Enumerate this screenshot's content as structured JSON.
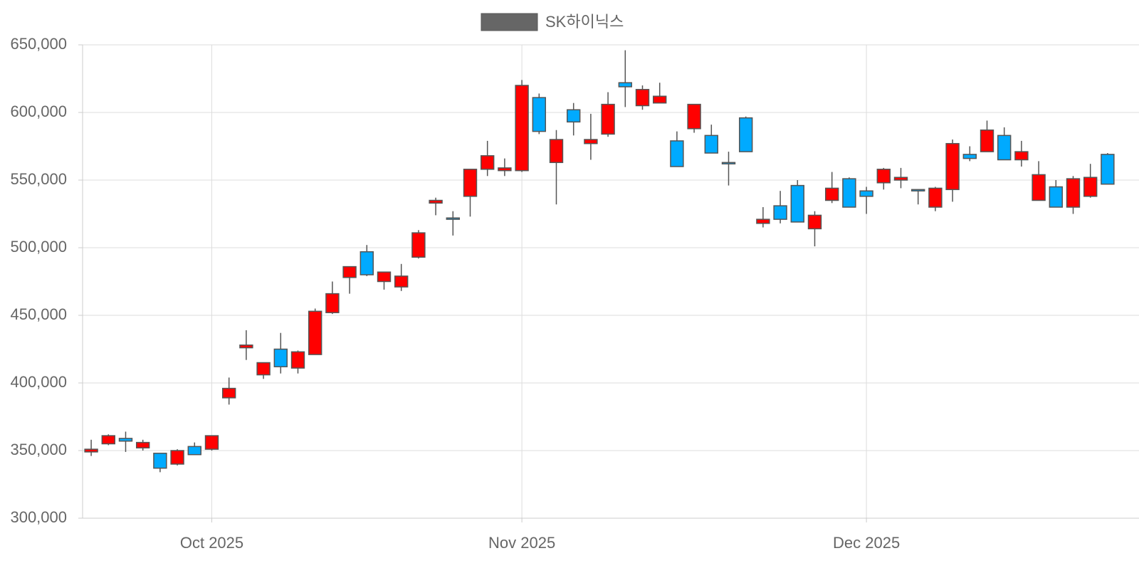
{
  "chart_data": {
    "type": "candlestick",
    "categories": [
      null,
      null,
      null,
      null,
      null,
      null,
      null,
      "Oct 2025",
      null,
      null,
      null,
      null,
      null,
      null,
      null,
      null,
      null,
      null,
      null,
      null,
      null,
      null,
      null,
      null,
      null,
      "Nov 2025",
      null,
      null,
      null,
      null,
      null,
      null,
      null,
      null,
      null,
      null,
      null,
      null,
      null,
      null,
      null,
      null,
      null,
      null,
      null,
      "Dec 2025",
      null,
      null,
      null,
      null,
      null,
      null,
      null,
      null,
      null,
      null,
      null,
      null,
      null,
      null
    ],
    "series": [
      {
        "name": "SK하이닉스",
        "color": "#666666",
        "up_color": "#ff0000",
        "down_color": "#00aaff",
        "open": [
          349000,
          355000,
          359000,
          352000,
          348000,
          340000,
          353000,
          351000,
          389000,
          426000,
          406000,
          425000,
          411000,
          421000,
          452000,
          478000,
          497000,
          475000,
          471000,
          493000,
          533000,
          522000,
          538000,
          558000,
          557000,
          557000,
          611000,
          563000,
          602000,
          577000,
          584000,
          622000,
          605000,
          607000,
          579000,
          588000,
          583000,
          563000,
          596000,
          518000,
          531000,
          546000,
          514000,
          535000,
          551000,
          542000,
          548000,
          550000,
          543000,
          530000,
          543000,
          569000,
          571000,
          583000,
          565000,
          535000,
          545000,
          530000,
          538000,
          569000
        ],
        "high": [
          358000,
          362000,
          364000,
          358000,
          348000,
          351000,
          356000,
          361000,
          404000,
          439000,
          415000,
          437000,
          424000,
          455000,
          475000,
          486000,
          502000,
          482000,
          488000,
          513000,
          537000,
          527000,
          558000,
          579000,
          566000,
          624000,
          614000,
          587000,
          607000,
          599000,
          615000,
          646000,
          620000,
          622000,
          586000,
          606000,
          591000,
          571000,
          597000,
          530000,
          542000,
          550000,
          527000,
          556000,
          552000,
          545000,
          559000,
          559000,
          543000,
          545000,
          580000,
          575000,
          594000,
          589000,
          579000,
          564000,
          550000,
          553000,
          562000,
          570000
        ],
        "low": [
          346000,
          354000,
          349000,
          350000,
          334000,
          339000,
          347000,
          350000,
          384000,
          417000,
          403000,
          407000,
          407000,
          421000,
          451000,
          466000,
          479000,
          469000,
          468000,
          492000,
          524000,
          509000,
          523000,
          553000,
          553000,
          556000,
          584000,
          532000,
          583000,
          565000,
          582000,
          604000,
          602000,
          607000,
          560000,
          585000,
          570000,
          546000,
          571000,
          515000,
          518000,
          519000,
          501000,
          533000,
          530000,
          525000,
          543000,
          544000,
          532000,
          527000,
          534000,
          564000,
          571000,
          565000,
          560000,
          535000,
          530000,
          525000,
          537000,
          547000
        ],
        "close": [
          351000,
          361000,
          357000,
          356000,
          337000,
          350000,
          347000,
          361000,
          396000,
          428000,
          415000,
          412000,
          423000,
          453000,
          466000,
          486000,
          480000,
          482000,
          479000,
          511000,
          535000,
          521000,
          558000,
          568000,
          559000,
          620000,
          586000,
          580000,
          593000,
          580000,
          606000,
          619000,
          617000,
          612000,
          560000,
          606000,
          570000,
          562000,
          571000,
          521000,
          521000,
          519000,
          524000,
          544000,
          530000,
          538000,
          558000,
          552000,
          542000,
          544000,
          577000,
          566000,
          587000,
          565000,
          571000,
          554000,
          530000,
          551000,
          552000,
          547000
        ]
      }
    ],
    "ylim": [
      300000,
      650000
    ],
    "yticks": [
      {
        "value": 300000,
        "label": "300,000"
      },
      {
        "value": 350000,
        "label": "350,000"
      },
      {
        "value": 400000,
        "label": "400,000"
      },
      {
        "value": 450000,
        "label": "450,000"
      },
      {
        "value": 500000,
        "label": "500,000"
      },
      {
        "value": 550000,
        "label": "550,000"
      },
      {
        "value": 600000,
        "label": "600,000"
      },
      {
        "value": 650000,
        "label": "650,000"
      }
    ],
    "grid": true,
    "legend": "top"
  }
}
